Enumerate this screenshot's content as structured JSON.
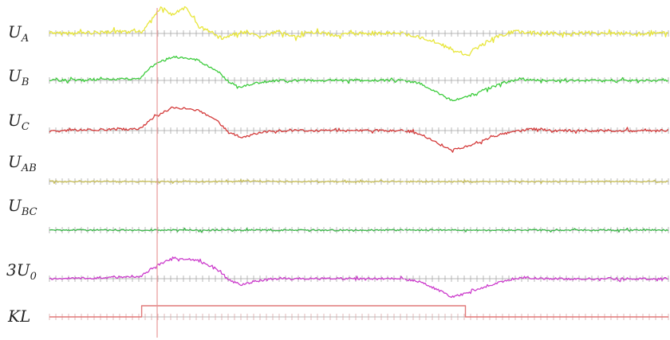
{
  "chart_data": {
    "type": "line",
    "title": "",
    "xlabel": "",
    "ylabel": "",
    "x_range": [
      0,
      100
    ],
    "fault_marker_x": 17.4,
    "gap_at_x": 57.5,
    "series": [
      {
        "name": "U_A",
        "label_main": "U",
        "label_sub": "A",
        "color": "#e8e63a",
        "points": [
          [
            0,
            0
          ],
          [
            15,
            0.5
          ],
          [
            16,
            3
          ],
          [
            18,
            7
          ],
          [
            20,
            5
          ],
          [
            22,
            7
          ],
          [
            23,
            5
          ],
          [
            24,
            2
          ],
          [
            26,
            0.5
          ],
          [
            28,
            -1.5
          ],
          [
            31,
            0.5
          ],
          [
            34,
            -1
          ],
          [
            37,
            0.5
          ],
          [
            40,
            -1
          ],
          [
            43,
            0.5
          ],
          [
            46,
            -0.5
          ],
          [
            50,
            0
          ],
          [
            57,
            0
          ],
          [
            62,
            -2
          ],
          [
            67,
            -6
          ],
          [
            70,
            -3
          ],
          [
            72,
            -1
          ],
          [
            75,
            0.5
          ],
          [
            80,
            0
          ],
          [
            100,
            0
          ]
        ]
      },
      {
        "name": "U_B",
        "label_main": "U",
        "label_sub": "B",
        "color": "#3ccc3c",
        "points": [
          [
            0,
            0
          ],
          [
            14.5,
            0.5
          ],
          [
            17,
            5
          ],
          [
            20,
            7
          ],
          [
            24,
            6
          ],
          [
            27,
            3
          ],
          [
            29,
            -0.5
          ],
          [
            31,
            -2
          ],
          [
            33,
            -1
          ],
          [
            36,
            0
          ],
          [
            57,
            0
          ],
          [
            60,
            -1
          ],
          [
            63,
            -4
          ],
          [
            65,
            -6
          ],
          [
            67,
            -5
          ],
          [
            70,
            -3
          ],
          [
            73,
            -1
          ],
          [
            76,
            0.5
          ],
          [
            80,
            0
          ],
          [
            100,
            0
          ]
        ]
      },
      {
        "name": "U_C",
        "label_main": "U",
        "label_sub": "C",
        "color": "#d43a3a",
        "points": [
          [
            0,
            0
          ],
          [
            14.5,
            0.5
          ],
          [
            17,
            4
          ],
          [
            20,
            7
          ],
          [
            24,
            6
          ],
          [
            27,
            3
          ],
          [
            29,
            -0.5
          ],
          [
            31,
            -2
          ],
          [
            33,
            -1
          ],
          [
            36,
            0
          ],
          [
            57,
            0
          ],
          [
            60,
            -1
          ],
          [
            63,
            -4
          ],
          [
            65,
            -6
          ],
          [
            67,
            -5
          ],
          [
            70,
            -3
          ],
          [
            73,
            -1
          ],
          [
            78,
            0.5
          ],
          [
            82,
            0
          ],
          [
            100,
            0
          ]
        ]
      },
      {
        "name": "U_AB",
        "label_main": "U",
        "label_sub": "AB",
        "color": "#c9c05a",
        "points": [
          [
            0,
            0
          ],
          [
            100,
            0
          ]
        ]
      },
      {
        "name": "U_BC",
        "label_main": "U",
        "label_sub": "BC",
        "color": "#3cb84a",
        "points": [
          [
            0,
            0
          ],
          [
            100,
            0
          ]
        ]
      },
      {
        "name": "3U_0",
        "label_main": "3U",
        "label_sub": "0",
        "color": "#cc3ccc",
        "points": [
          [
            0,
            0
          ],
          [
            14.5,
            0.5
          ],
          [
            17,
            4
          ],
          [
            20,
            7
          ],
          [
            24,
            6
          ],
          [
            27,
            3
          ],
          [
            29,
            -0.5
          ],
          [
            31,
            -2
          ],
          [
            33,
            -1
          ],
          [
            36,
            0
          ],
          [
            57,
            0
          ],
          [
            60,
            -1
          ],
          [
            63,
            -4
          ],
          [
            65,
            -6
          ],
          [
            67,
            -5
          ],
          [
            70,
            -3
          ],
          [
            73,
            -1
          ],
          [
            76,
            0.5
          ],
          [
            80,
            0
          ],
          [
            100,
            0
          ]
        ]
      },
      {
        "name": "KL",
        "label_main": "KL",
        "label_sub": "",
        "color": "#e07878",
        "points": [
          [
            0,
            0
          ],
          [
            14.9,
            0
          ],
          [
            14.9,
            1
          ],
          [
            67.2,
            1
          ],
          [
            67.2,
            0
          ],
          [
            100,
            0
          ]
        ]
      }
    ]
  }
}
